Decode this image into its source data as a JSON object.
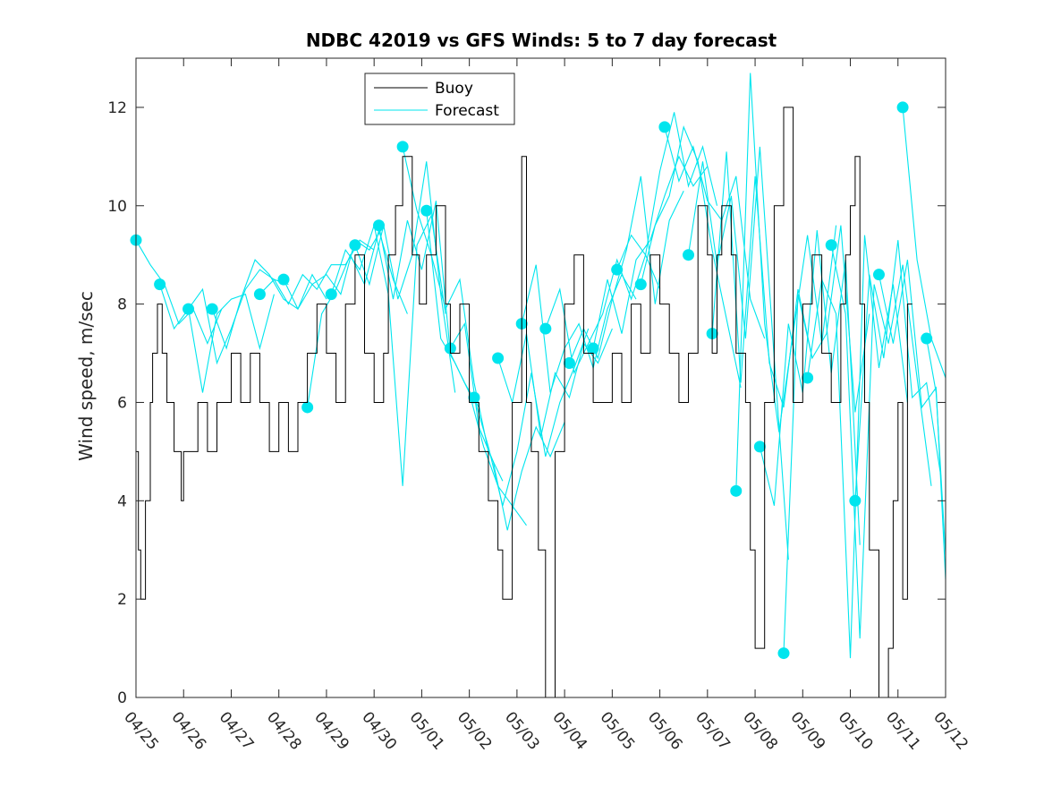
{
  "chart_data": {
    "type": "line",
    "title": "NDBC 42019 vs GFS Winds: 5 to 7 day forecast",
    "xlabel": "",
    "ylabel": "Wind speed, m/sec",
    "xlim": [
      0,
      17
    ],
    "ylim": [
      0,
      13
    ],
    "x_tick_labels": [
      "04/25",
      "04/26",
      "04/27",
      "04/28",
      "04/29",
      "04/30",
      "05/01",
      "05/02",
      "05/03",
      "05/04",
      "05/05",
      "05/06",
      "05/07",
      "05/08",
      "05/09",
      "05/10",
      "05/11",
      "05/12"
    ],
    "y_ticks": [
      0,
      2,
      4,
      6,
      8,
      10,
      12
    ],
    "x_units": "days since 04/25",
    "grid": false,
    "legend": {
      "position": "top-center",
      "entries": [
        "Buoy",
        "Forecast"
      ]
    },
    "colors": {
      "buoy": "#000000",
      "forecast": "#00e5ee"
    },
    "series": [
      {
        "name": "Buoy",
        "x": [
          0,
          0.05,
          0.1,
          0.2,
          0.3,
          0.35,
          0.45,
          0.55,
          0.65,
          0.8,
          0.95,
          1.0,
          1.1,
          1.3,
          1.5,
          1.7,
          1.9,
          2.0,
          2.2,
          2.4,
          2.6,
          2.8,
          3.0,
          3.2,
          3.4,
          3.6,
          3.8,
          4.0,
          4.2,
          4.4,
          4.6,
          4.8,
          5.0,
          5.2,
          5.3,
          5.45,
          5.6,
          5.8,
          5.95,
          6.1,
          6.3,
          6.5,
          6.6,
          6.8,
          7.0,
          7.2,
          7.4,
          7.6,
          7.7,
          7.9,
          8.1,
          8.2,
          8.3,
          8.45,
          8.6,
          8.8,
          9.0,
          9.2,
          9.4,
          9.6,
          9.8,
          10.0,
          10.2,
          10.4,
          10.6,
          10.8,
          11.0,
          11.2,
          11.4,
          11.6,
          11.8,
          12.0,
          12.1,
          12.2,
          12.3,
          12.5,
          12.6,
          12.8,
          12.9,
          13.0,
          13.2,
          13.4,
          13.6,
          13.8,
          14.0,
          14.2,
          14.4,
          14.6,
          14.8,
          14.9,
          15.0,
          15.1,
          15.2,
          15.3,
          15.4,
          15.6,
          15.8,
          15.9,
          16.0,
          16.1,
          16.2
        ],
        "y": [
          5,
          3,
          2,
          4,
          6,
          7,
          8,
          7,
          6,
          5,
          4,
          5,
          5,
          6,
          5,
          6,
          6,
          7,
          6,
          7,
          6,
          5,
          6,
          5,
          6,
          7,
          8,
          7,
          6,
          8,
          9,
          7,
          6,
          7,
          9,
          10,
          11,
          9,
          8,
          9,
          10,
          8,
          7,
          8,
          6,
          5,
          4,
          3,
          2,
          6,
          11,
          6,
          5,
          3,
          0,
          5,
          8,
          9,
          7,
          6,
          6,
          7,
          6,
          8,
          7,
          9,
          8,
          7,
          6,
          7,
          10,
          9,
          7,
          9,
          10,
          9,
          7,
          6,
          3,
          1,
          6,
          10,
          12,
          6,
          8,
          9,
          7,
          6,
          8,
          9,
          10,
          11,
          8,
          6,
          3,
          0,
          1,
          4,
          6,
          2,
          8
        ]
      },
      {
        "name": "Forecast",
        "x": [
          0,
          0.3,
          0.6,
          0.9,
          1.2,
          1.5,
          1.8
        ],
        "y": [
          9.3,
          8.8,
          8.4,
          7.6,
          7.9,
          7.2,
          7.9
        ]
      },
      {
        "x": [
          0.5,
          0.8,
          1.1,
          1.4,
          1.7,
          2.0,
          2.3,
          2.6,
          2.9
        ],
        "y": [
          8.4,
          7.5,
          7.9,
          6.2,
          7.8,
          8.1,
          8.2,
          7.1,
          8.2
        ]
      },
      {
        "x": [
          1.1,
          1.4,
          1.7,
          2.0,
          2.3,
          2.6,
          2.9,
          3.2
        ],
        "y": [
          7.9,
          8.3,
          6.8,
          7.5,
          8.3,
          8.7,
          8.5,
          8.4
        ]
      },
      {
        "x": [
          1.6,
          1.9,
          2.2,
          2.5,
          2.8,
          3.1,
          3.4,
          3.7,
          4.0
        ],
        "y": [
          7.9,
          7.1,
          8.1,
          8.9,
          8.6,
          8.1,
          7.9,
          8.6,
          8.1
        ]
      },
      {
        "x": [
          2.6,
          2.9,
          3.2,
          3.5,
          3.8,
          4.1,
          4.4,
          4.7,
          5.0
        ],
        "y": [
          8.2,
          8.5,
          8.0,
          8.6,
          8.3,
          8.8,
          8.8,
          9.3,
          9.1
        ]
      },
      {
        "x": [
          3.1,
          3.4,
          3.7,
          4.0,
          4.3,
          4.6,
          4.9,
          5.2
        ],
        "y": [
          8.5,
          7.9,
          8.4,
          8.6,
          8.2,
          9.3,
          9.1,
          9.6
        ]
      },
      {
        "x": [
          3.6,
          3.9,
          4.2,
          4.5,
          4.8,
          5.1,
          5.4,
          5.7
        ],
        "y": [
          5.9,
          7.8,
          8.3,
          9.0,
          8.4,
          9.5,
          8.5,
          7.8
        ]
      },
      {
        "x": [
          4.1,
          4.4,
          4.7,
          5.0,
          5.3,
          5.6,
          5.9,
          6.2,
          6.5
        ],
        "y": [
          8.2,
          9.1,
          8.7,
          9.6,
          8.2,
          4.3,
          9.2,
          9.8,
          7.8
        ]
      },
      {
        "x": [
          4.6,
          4.9,
          5.2,
          5.5,
          5.8,
          6.1,
          6.4,
          6.7
        ],
        "y": [
          9.2,
          8.4,
          9.6,
          8.1,
          9.0,
          10.9,
          8.2,
          6.2
        ]
      },
      {
        "x": [
          5.1,
          5.4,
          5.7,
          6.0,
          6.3,
          6.6,
          6.9,
          7.2
        ],
        "y": [
          9.6,
          8.1,
          9.7,
          8.7,
          10.1,
          7.0,
          6.4,
          5.9
        ]
      },
      {
        "x": [
          5.6,
          5.9,
          6.2,
          6.5,
          6.8,
          7.1,
          7.4,
          7.7
        ],
        "y": [
          11.2,
          9.9,
          9.0,
          7.9,
          8.5,
          6.4,
          5.0,
          4.4
        ]
      },
      {
        "x": [
          6.1,
          6.4,
          6.7,
          7.0,
          7.3,
          7.6,
          7.9,
          8.2
        ],
        "y": [
          9.9,
          7.3,
          6.8,
          6.2,
          5.1,
          4.3,
          3.9,
          3.5
        ]
      },
      {
        "x": [
          6.6,
          6.9,
          7.2,
          7.5,
          7.8,
          8.1,
          8.4,
          8.7,
          9.0
        ],
        "y": [
          7.1,
          7.6,
          5.5,
          4.8,
          3.4,
          4.6,
          5.5,
          4.9,
          5.6
        ]
      },
      {
        "x": [
          7.1,
          7.4,
          7.7,
          8.0,
          8.3,
          8.6,
          8.9,
          9.2,
          9.5
        ],
        "y": [
          6.1,
          5.1,
          3.9,
          5.0,
          6.6,
          4.9,
          6.0,
          6.7,
          7.5
        ]
      },
      {
        "x": [
          7.6,
          7.9,
          8.2,
          8.5,
          8.8,
          9.1,
          9.4,
          9.7,
          10.0
        ],
        "y": [
          6.9,
          6.0,
          7.4,
          5.3,
          6.6,
          6.1,
          7.2,
          6.8,
          7.5
        ]
      },
      {
        "x": [
          8.1,
          8.4,
          8.7,
          9.0,
          9.3,
          9.6,
          9.9,
          10.2,
          10.5
        ],
        "y": [
          7.6,
          8.8,
          6.2,
          7.1,
          7.6,
          6.7,
          7.9,
          8.6,
          8.1
        ]
      },
      {
        "x": [
          8.6,
          8.9,
          9.2,
          9.5,
          9.8,
          10.1,
          10.4,
          10.7,
          11.0
        ],
        "y": [
          7.5,
          8.3,
          6.6,
          7.2,
          7.8,
          8.9,
          8.1,
          9.0,
          8.3
        ]
      },
      {
        "x": [
          9.1,
          9.4,
          9.7,
          10.0,
          10.3,
          10.6,
          10.9,
          11.2,
          11.5
        ],
        "y": [
          6.8,
          7.5,
          6.9,
          8.1,
          9.1,
          10.6,
          8.0,
          9.7,
          10.3
        ]
      },
      {
        "x": [
          9.6,
          9.9,
          10.2,
          10.5,
          10.8,
          11.1,
          11.4,
          11.7,
          12.0
        ],
        "y": [
          7.1,
          8.5,
          7.4,
          8.9,
          9.3,
          10.2,
          11.0,
          10.4,
          10.8
        ]
      },
      {
        "x": [
          10.1,
          10.4,
          10.7,
          11.0,
          11.3,
          11.6,
          11.9,
          12.2
        ],
        "y": [
          8.7,
          9.4,
          9.0,
          10.7,
          11.9,
          10.4,
          11.2,
          10.0
        ]
      },
      {
        "x": [
          10.6,
          10.9,
          11.2,
          11.5,
          11.8,
          12.1,
          12.4,
          12.7
        ],
        "y": [
          8.4,
          9.6,
          10.2,
          11.6,
          10.9,
          9.1,
          7.7,
          6.3
        ]
      },
      {
        "x": [
          11.1,
          11.4,
          11.7,
          12.0,
          12.3,
          12.6,
          12.9,
          13.2
        ],
        "y": [
          11.6,
          10.5,
          11.2,
          10.1,
          9.7,
          10.6,
          8.1,
          7.3
        ]
      },
      {
        "x": [
          11.6,
          11.9,
          12.2,
          12.5,
          12.8,
          13.1,
          13.4,
          13.7
        ],
        "y": [
          9.0,
          10.9,
          8.8,
          10.2,
          7.3,
          11.2,
          6.9,
          2.8
        ]
      },
      {
        "x": [
          12.1,
          12.4,
          12.7,
          13.0,
          13.3,
          13.6,
          13.9,
          14.2
        ],
        "y": [
          7.4,
          11.1,
          6.4,
          10.6,
          6.8,
          5.9,
          8.3,
          6.9
        ]
      },
      {
        "x": [
          12.6,
          12.9,
          13.2,
          13.5,
          13.8,
          14.1,
          14.4,
          14.7
        ],
        "y": [
          4.2,
          12.7,
          7.6,
          5.4,
          7.4,
          9.4,
          7.2,
          9.6
        ]
      },
      {
        "x": [
          13.1,
          13.4,
          13.7,
          14.0,
          14.3,
          14.6,
          14.9,
          15.2
        ],
        "y": [
          5.1,
          3.9,
          7.6,
          6.2,
          9.5,
          6.6,
          8.9,
          3.1
        ]
      },
      {
        "x": [
          13.6,
          13.9,
          14.2,
          14.5,
          14.8,
          15.1,
          15.4
        ],
        "y": [
          0.9,
          8.2,
          6.9,
          7.4,
          9.6,
          5.8,
          7.8
        ]
      },
      {
        "x": [
          14.1,
          14.4,
          14.7,
          15.0,
          15.3,
          15.6,
          15.9,
          16.2
        ],
        "y": [
          6.5,
          8.5,
          7.8,
          0.8,
          9.4,
          6.7,
          8.4,
          6.0
        ]
      },
      {
        "x": [
          14.6,
          14.9,
          15.2,
          15.5,
          15.8,
          16.1,
          16.4,
          16.7
        ],
        "y": [
          9.2,
          7.8,
          1.2,
          8.4,
          7.2,
          8.8,
          6.5,
          4.3
        ]
      },
      {
        "x": [
          15.1,
          15.4,
          15.7,
          16.0,
          16.3,
          16.6,
          16.9
        ],
        "y": [
          4.0,
          8.6,
          6.9,
          9.3,
          6.1,
          6.4,
          4.5
        ]
      },
      {
        "x": [
          15.6,
          15.9,
          16.2,
          16.5,
          16.8,
          17.0
        ],
        "y": [
          8.6,
          7.2,
          8.9,
          5.9,
          6.3,
          2.4
        ]
      },
      {
        "x": [
          16.1,
          16.4,
          16.7,
          17.0
        ],
        "y": [
          12.0,
          8.9,
          7.3,
          6.5
        ]
      },
      {
        "x": [
          16.6,
          16.8,
          17.0
        ],
        "y": [
          7.3,
          6.2,
          2.9
        ]
      }
    ]
  }
}
